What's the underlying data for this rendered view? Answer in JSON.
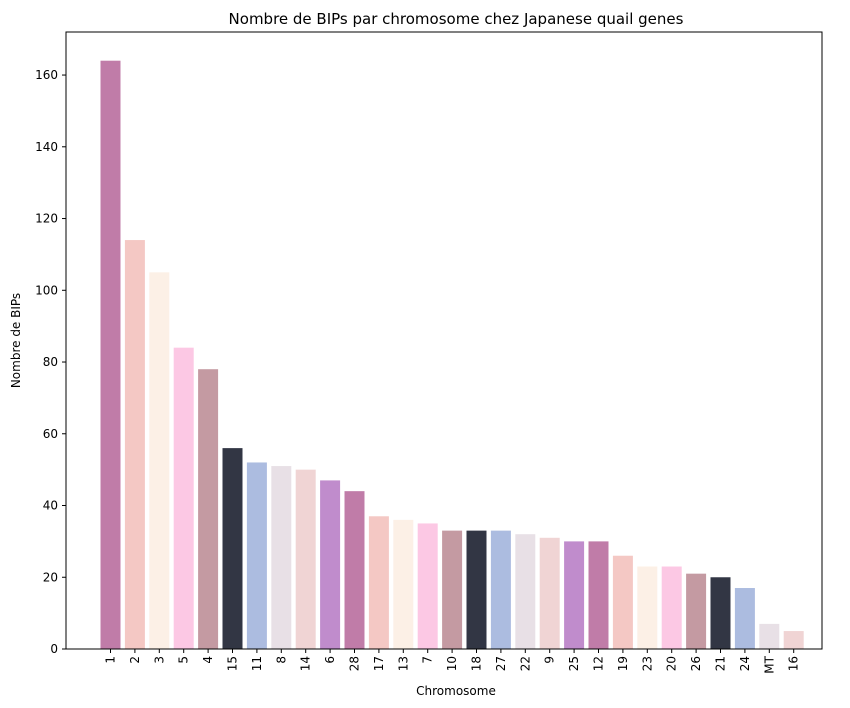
{
  "chart_data": {
    "type": "bar",
    "title": "Nombre de BIPs par chromosome chez Japanese quail genes",
    "xlabel": "Chromosome",
    "ylabel": "Nombre de BIPs",
    "ylim": [
      0,
      172
    ],
    "yticks": [
      0,
      20,
      40,
      60,
      80,
      100,
      120,
      140,
      160
    ],
    "grid": false,
    "categories": [
      "1",
      "2",
      "3",
      "5",
      "4",
      "15",
      "11",
      "8",
      "14",
      "6",
      "28",
      "17",
      "13",
      "7",
      "10",
      "18",
      "27",
      "22",
      "9",
      "25",
      "12",
      "19",
      "23",
      "20",
      "26",
      "21",
      "24",
      "MT",
      "16"
    ],
    "values": [
      164,
      114,
      105,
      84,
      78,
      56,
      52,
      51,
      50,
      47,
      44,
      37,
      36,
      35,
      33,
      33,
      33,
      32,
      31,
      30,
      30,
      26,
      23,
      23,
      21,
      20,
      17,
      7,
      5
    ],
    "colors": [
      "#c07ca8",
      "#f4c8c4",
      "#fcf0e6",
      "#fcc8e4",
      "#c49aa2",
      "#323644",
      "#acbce0",
      "#e8e0e6",
      "#f0d4d4",
      "#c08ccc",
      "#c07ca8",
      "#f4c8c4",
      "#fcf0e6",
      "#fcc8e4",
      "#c49aa2",
      "#323644",
      "#acbce0",
      "#e8e0e6",
      "#f0d4d4",
      "#c08ccc",
      "#c07ca8",
      "#f4c8c4",
      "#fcf0e6",
      "#fcc8e4",
      "#c49aa2",
      "#323644",
      "#acbce0",
      "#e8e0e6",
      "#f0d4d4"
    ]
  }
}
